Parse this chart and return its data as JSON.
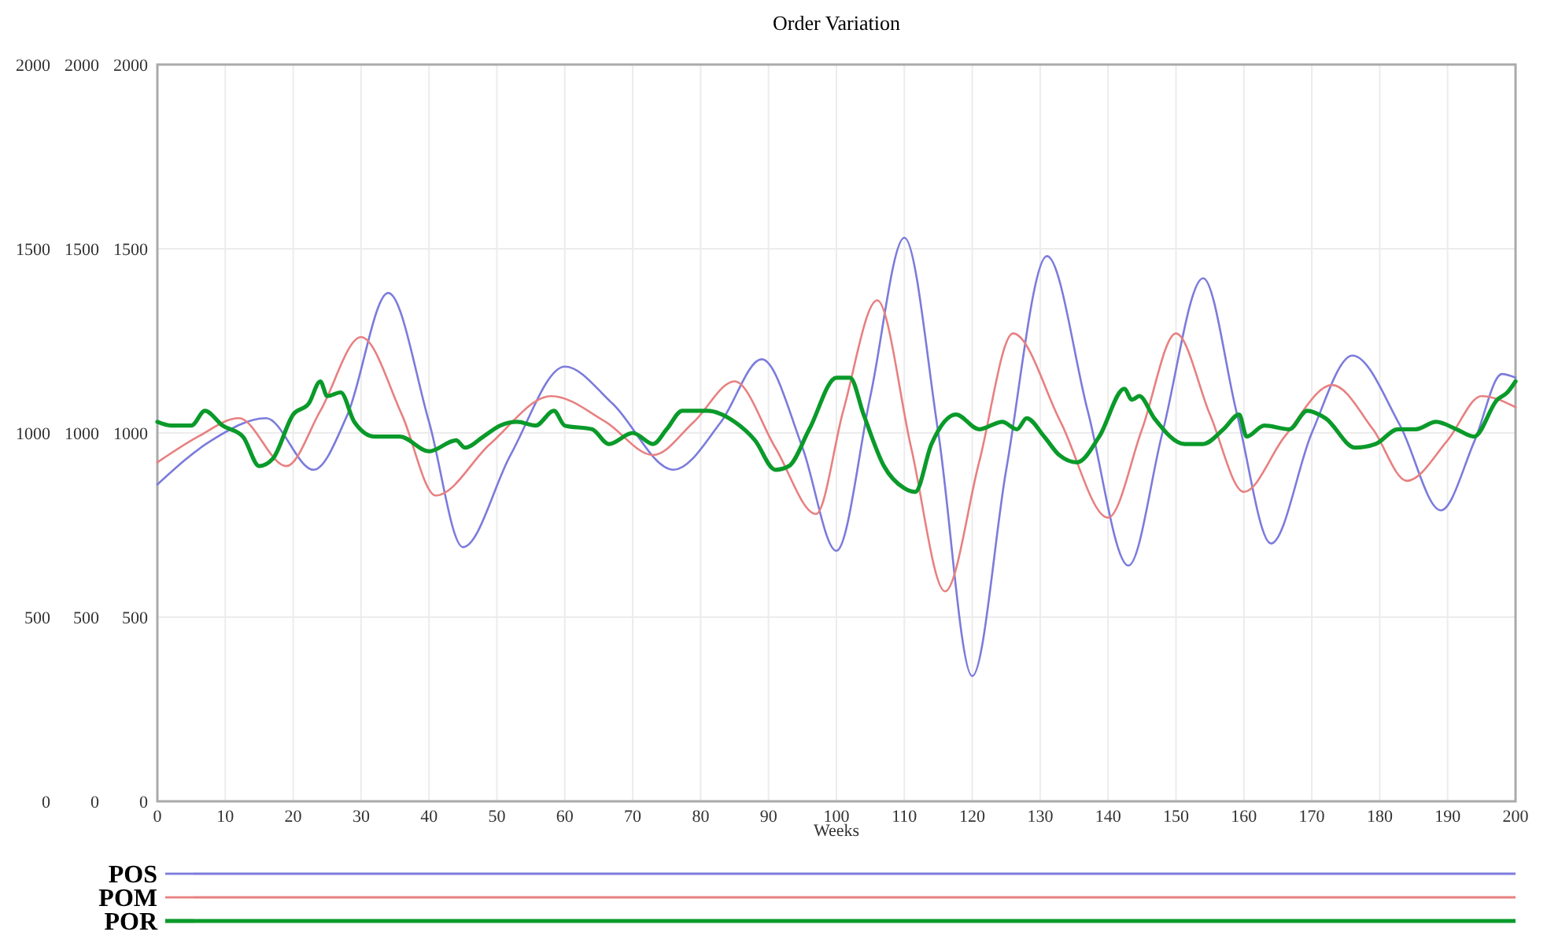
{
  "chart_data": {
    "type": "line",
    "title": "Order Variation",
    "xlabel": "Weeks",
    "xlim": [
      0,
      200
    ],
    "xticks": [
      0,
      10,
      20,
      30,
      40,
      50,
      60,
      70,
      80,
      90,
      100,
      110,
      120,
      130,
      140,
      150,
      160,
      170,
      180,
      190,
      200
    ],
    "ylim": [
      0,
      2000
    ],
    "yticks": [
      0,
      500,
      1000,
      1500,
      2000
    ],
    "y2lim": [
      0,
      2000
    ],
    "y2ticks": [
      0,
      500,
      1000,
      1500,
      2000
    ],
    "y3lim": [
      0,
      2000
    ],
    "y3ticks": [
      0,
      500,
      1000,
      1500,
      2000
    ],
    "grid": true,
    "legend": "bottom",
    "series": [
      {
        "name": "POS",
        "color": "#7b7bdc",
        "axis": "y",
        "x": [
          0,
          8,
          16,
          23,
          28,
          34,
          40,
          45,
          52,
          60,
          67,
          76,
          83,
          89,
          95,
          100,
          105,
          110,
          115,
          120,
          125,
          131,
          137,
          143,
          148,
          154,
          159,
          164,
          170,
          176,
          183,
          189,
          194,
          198,
          200
        ],
        "values": [
          860,
          980,
          1040,
          900,
          1050,
          1380,
          1030,
          690,
          940,
          1180,
          1080,
          900,
          1030,
          1200,
          960,
          680,
          1100,
          1530,
          1000,
          340,
          900,
          1480,
          1060,
          640,
          1000,
          1420,
          1050,
          700,
          1000,
          1210,
          1020,
          790,
          980,
          1160,
          1150
        ]
      },
      {
        "name": "POM",
        "color": "#e88080",
        "axis": "y2",
        "x": [
          0,
          6,
          12,
          19,
          24,
          30,
          36,
          41,
          49,
          58,
          66,
          73,
          79,
          85,
          91,
          97,
          101,
          106,
          111,
          116,
          121,
          126,
          133,
          140,
          145,
          150,
          155,
          160,
          166,
          173,
          179,
          184,
          190,
          195,
          200
        ],
        "values": [
          920,
          990,
          1040,
          910,
          1060,
          1260,
          1050,
          830,
          970,
          1100,
          1030,
          940,
          1030,
          1140,
          960,
          780,
          1060,
          1360,
          960,
          570,
          920,
          1270,
          1030,
          770,
          1010,
          1270,
          1050,
          840,
          990,
          1130,
          1010,
          870,
          980,
          1100,
          1070
        ]
      },
      {
        "name": "POR",
        "color": "#0a9a2a",
        "axis": "y3",
        "x": [
          0,
          2,
          5,
          7,
          9.6,
          12.6,
          15,
          17,
          20,
          22.3,
          24,
          25,
          27,
          29,
          32,
          35.7,
          40,
          44,
          45.3,
          48,
          50.5,
          53,
          55.7,
          58.4,
          60,
          64,
          66.5,
          70,
          73,
          75,
          77.3,
          81,
          85,
          88,
          91,
          93,
          96,
          100,
          102,
          104,
          107,
          110,
          111.6,
          114,
          117.6,
          121,
          124.4,
          126.6,
          128,
          130.6,
          132.8,
          135.4,
          138.7,
          142.4,
          143.5,
          144.6,
          146.8,
          151.3,
          154,
          157,
          159.3,
          160.4,
          163,
          166.7,
          169.3,
          172,
          176.4,
          179.4,
          182.7,
          185.3,
          188.3,
          191.3,
          193.9,
          197.3,
          198.8,
          200
        ],
        "values": [
          1030,
          1020,
          1020,
          1060,
          1020,
          990,
          910,
          930,
          1050,
          1080,
          1140,
          1100,
          1110,
          1030,
          990,
          990,
          950,
          980,
          960,
          990,
          1020,
          1030,
          1020,
          1060,
          1020,
          1010,
          970,
          1000,
          970,
          1010,
          1060,
          1060,
          1030,
          980,
          900,
          910,
          1010,
          1150,
          1150,
          1050,
          910,
          850,
          840,
          970,
          1050,
          1010,
          1030,
          1010,
          1040,
          990,
          940,
          920,
          990,
          1120,
          1090,
          1100,
          1040,
          970,
          970,
          1010,
          1050,
          990,
          1020,
          1010,
          1060,
          1040,
          960,
          970,
          1010,
          1010,
          1030,
          1010,
          990,
          1090,
          1110,
          1140
        ]
      }
    ]
  }
}
